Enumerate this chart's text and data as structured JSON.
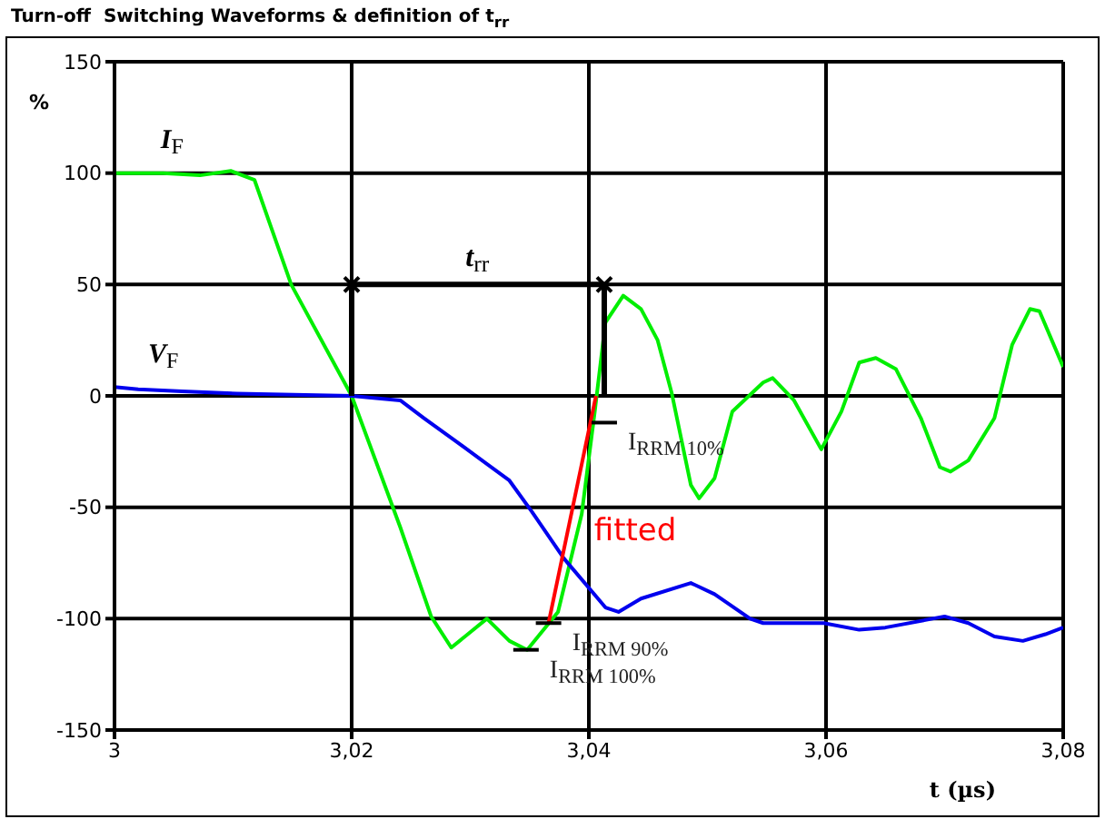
{
  "chart_data": {
    "type": "line",
    "title": "Turn-off  Switching Waveforms & definition of t$_{rr}$",
    "xlabel": "t (µs)",
    "ylabel": "%",
    "xlim": [
      3,
      3.08
    ],
    "xticks": [
      3,
      {
        "value": 3.02,
        "label": "3,02"
      },
      {
        "value": 3.04,
        "label": "3,04"
      },
      {
        "value": 3.06,
        "label": "3,06"
      },
      {
        "value": 3.08,
        "label": "3,08"
      }
    ],
    "ylim": [
      -150,
      150
    ],
    "yticks": [
      -150,
      -100,
      -50,
      0,
      50,
      100,
      150
    ],
    "grid": true,
    "series": [
      {
        "name": "I$_{F}$",
        "color": "#00ee00",
        "x": [
          3,
          3.0041,
          3.0072,
          3.0098,
          3.0118,
          3.0149,
          3.02,
          3.0241,
          3.0267,
          3.0284,
          3.0314,
          3.0333,
          3.0348,
          3.0374,
          3.0394,
          3.0405,
          3.0414,
          3.0429,
          3.0444,
          3.0458,
          3.047,
          3.0486,
          3.0493,
          3.0506,
          3.0521,
          3.0547,
          3.0555,
          3.0573,
          3.0596,
          3.0613,
          3.0628,
          3.0642,
          3.0659,
          3.068,
          3.0696,
          3.0705,
          3.072,
          3.0742,
          3.0757,
          3.0772,
          3.078,
          3.08
        ],
        "values": [
          100,
          100,
          99,
          101,
          97,
          50,
          0,
          -59,
          -99,
          -113,
          -100,
          -110,
          -114,
          -97,
          -53,
          -7,
          33,
          45,
          39,
          25,
          1,
          -40,
          -46,
          -37,
          -7,
          6,
          8,
          -2,
          -24,
          -7,
          15,
          17,
          12,
          -10,
          -32,
          -34,
          -29,
          -10,
          23,
          39,
          38,
          13
        ]
      },
      {
        "name": "V$_{F}$",
        "color": "#0000ee",
        "x": [
          3,
          3.002,
          3.0057,
          3.0103,
          3.02,
          3.0241,
          3.0261,
          3.0287,
          3.0333,
          3.0352,
          3.0379,
          3.0414,
          3.0425,
          3.0444,
          3.0486,
          3.0506,
          3.0536,
          3.0547,
          3.0598,
          3.0628,
          3.065,
          3.07,
          3.072,
          3.0742,
          3.0766,
          3.0785,
          3.08
        ],
        "values": [
          4,
          3,
          2,
          1,
          0,
          -2,
          -10,
          -20,
          -38,
          -52,
          -73,
          -95,
          -97,
          -91,
          -84,
          -89,
          -100,
          -102,
          -102,
          -105,
          -104,
          -99,
          -102,
          -108,
          -110,
          -107,
          -104
        ]
      },
      {
        "name": "fitted",
        "color": "#ff0000",
        "x": [
          3.0406,
          3.0366
        ],
        "values": [
          0,
          -102
        ]
      },
      {
        "color": "#000000",
        "x": [
          3.02,
          3.0413
        ],
        "values": [
          50,
          50
        ],
        "marker": "cross"
      },
      {
        "color": "#000000",
        "x": [
          3.02,
          3.02,
          3.03,
          3.0413,
          3.0413
        ],
        "values": [
          0,
          50,
          null,
          50,
          0
        ]
      }
    ],
    "annotations": [
      {
        "text": "t$_{rr}$",
        "x": 3.0306,
        "y": 50
      },
      {
        "text": "I$_{RRM 10%}$",
        "x": 3.0413,
        "y": -12
      },
      {
        "text": "I$_{RRM 90%}$",
        "x": 3.0366,
        "y": -102
      },
      {
        "text": "I$_{RRM 100%}$",
        "x": 3.0347,
        "y": -114
      }
    ]
  }
}
